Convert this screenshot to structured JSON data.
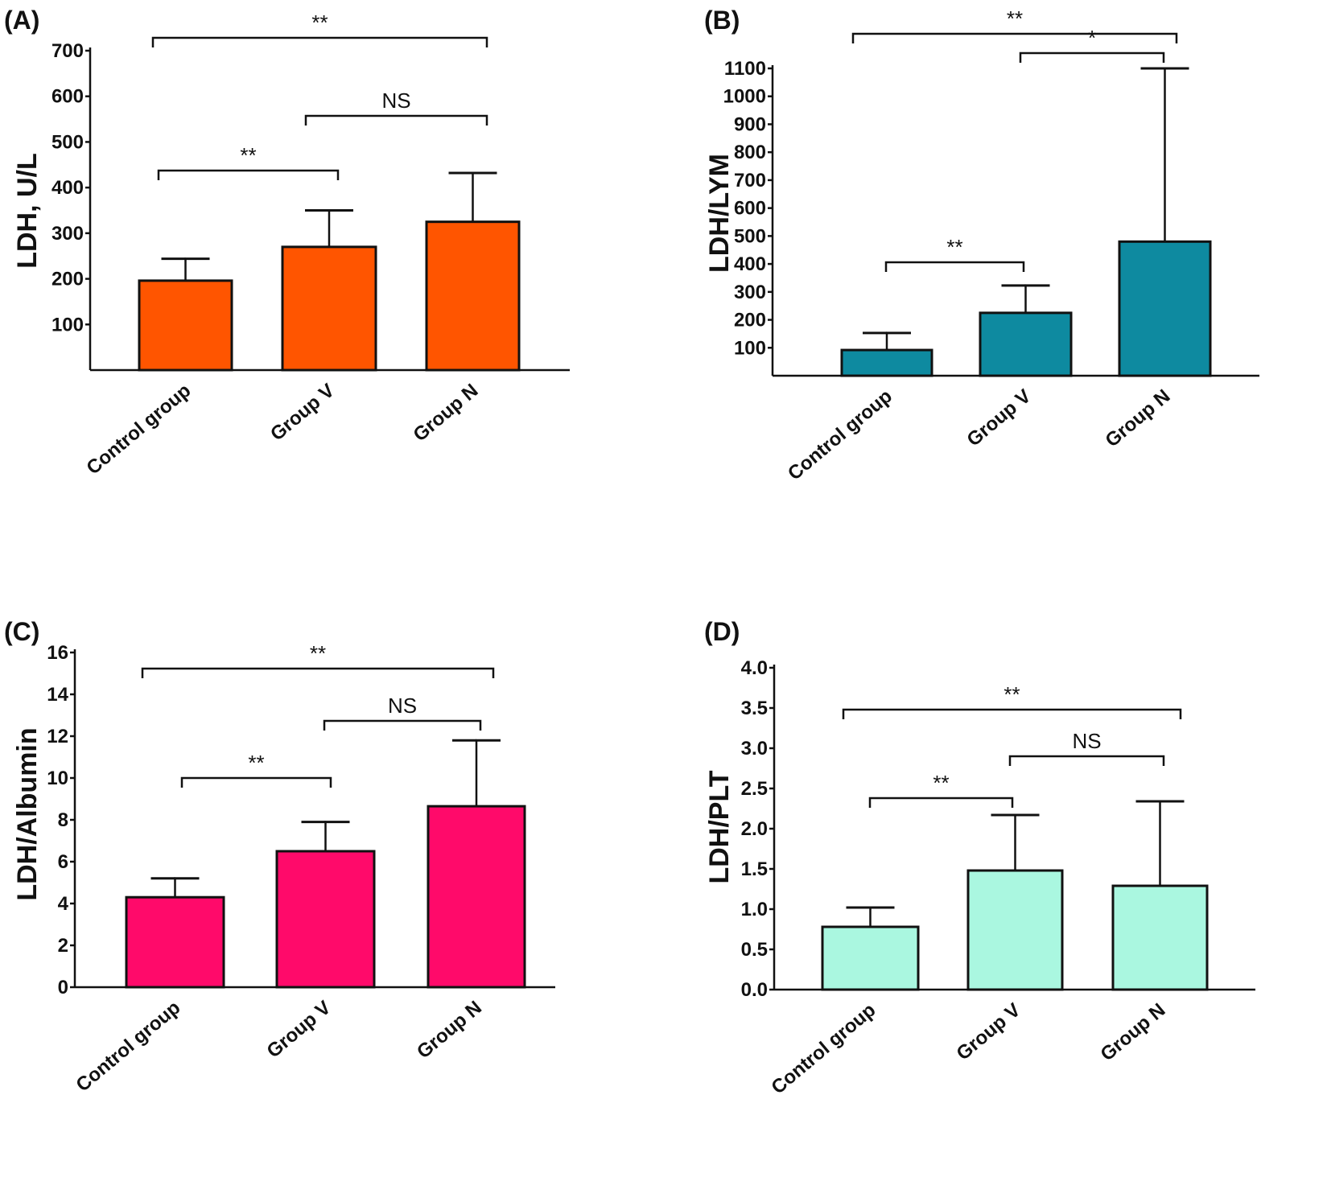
{
  "chart_data": [
    {
      "type": "bar",
      "panel_label": "(A)",
      "ylabel": "LDH, U/L",
      "categories": [
        "Control group",
        "Group V",
        "Group N"
      ],
      "values": [
        196,
        270,
        325
      ],
      "error_upper": [
        244,
        350,
        432
      ],
      "ylim": [
        0,
        700
      ],
      "yticks": [
        "100",
        "200",
        "300",
        "400",
        "500",
        "600",
        "700"
      ],
      "color": "#ff5500",
      "grid": false,
      "annotations": [
        {
          "from": 0,
          "to": 2,
          "text": "**"
        },
        {
          "from": 1,
          "to": 2,
          "text": "NS"
        },
        {
          "from": 0,
          "to": 1,
          "text": "**"
        }
      ]
    },
    {
      "type": "bar",
      "panel_label": "(B)",
      "ylabel": "LDH/LYM",
      "categories": [
        "Control group",
        "Group V",
        "Group N"
      ],
      "values": [
        92,
        225,
        480
      ],
      "error_upper": [
        153,
        323,
        1100
      ],
      "ylim": [
        0,
        1100
      ],
      "yticks": [
        "100",
        "200",
        "300",
        "400",
        "500",
        "600",
        "700",
        "800",
        "900",
        "1000",
        "1100"
      ],
      "color": "#0e8aa0",
      "grid": false,
      "annotations": [
        {
          "from": 0,
          "to": 2,
          "text": "**"
        },
        {
          "from": 1,
          "to": 2,
          "text": "*"
        },
        {
          "from": 0,
          "to": 1,
          "text": "**"
        }
      ]
    },
    {
      "type": "bar",
      "panel_label": "(C)",
      "ylabel": "LDH/Albumin",
      "categories": [
        "Control group",
        "Group V",
        "Group N"
      ],
      "values": [
        4.3,
        6.5,
        8.65
      ],
      "error_upper": [
        5.2,
        7.9,
        11.8
      ],
      "ylim": [
        0,
        16
      ],
      "yticks": [
        "0",
        "2",
        "4",
        "6",
        "8",
        "10",
        "12",
        "14",
        "16"
      ],
      "color": "#ff0a6a",
      "grid": false,
      "annotations": [
        {
          "from": 0,
          "to": 2,
          "text": "**"
        },
        {
          "from": 1,
          "to": 2,
          "text": "NS"
        },
        {
          "from": 0,
          "to": 1,
          "text": "**"
        }
      ]
    },
    {
      "type": "bar",
      "panel_label": "(D)",
      "ylabel": "LDH/PLT",
      "categories": [
        "Control group",
        "Group V",
        "Group N"
      ],
      "values": [
        0.78,
        1.48,
        1.29
      ],
      "error_upper": [
        1.02,
        2.17,
        2.34
      ],
      "ylim": [
        0,
        4.0
      ],
      "yticks": [
        "0.0",
        "0.5",
        "1.0",
        "1.5",
        "2.0",
        "2.5",
        "3.0",
        "3.5",
        "4.0"
      ],
      "color": "#aaf7e0",
      "grid": false,
      "annotations": [
        {
          "from": 0,
          "to": 2,
          "text": "**"
        },
        {
          "from": 1,
          "to": 2,
          "text": "NS"
        },
        {
          "from": 0,
          "to": 1,
          "text": "**"
        }
      ]
    }
  ]
}
